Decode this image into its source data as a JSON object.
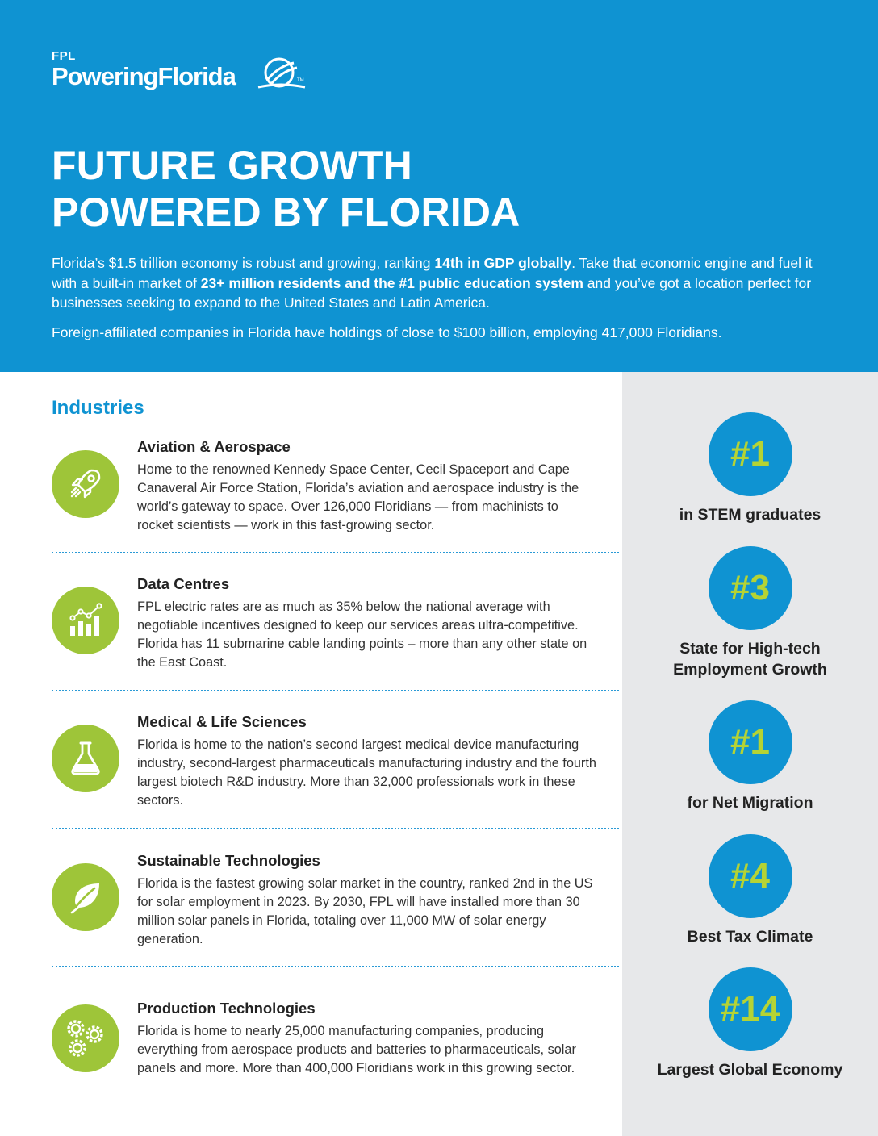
{
  "logo": {
    "brand_small": "FPL",
    "brand_main": "PoweringFlorida",
    "trademark": "TM"
  },
  "hero": {
    "title_line1": "FUTURE GROWTH",
    "title_line2": "POWERED BY FLORIDA",
    "intro": {
      "a": "Florida’s $1.5 trillion economy is robust and growing, ranking ",
      "b": "14th in GDP globally",
      "c": ". Take that economic engine and fuel it with a built-in market of ",
      "d": "23+ million residents and the #1 public education system",
      "e": " and you’ve got a location perfect for businesses seeking to expand to the United States and Latin America."
    },
    "intro2": "Foreign-affiliated companies in Florida have holdings of close to $100 billion, employing 417,000 Floridians."
  },
  "industries": {
    "heading": "Industries",
    "items": [
      {
        "title": "Aviation & Aerospace",
        "icon": "rocket-icon",
        "body": "Home to the renowned Kennedy Space Center, Cecil Spaceport and Cape Canaveral Air Force Station, Florida’s aviation and aerospace industry is the world’s gateway to space. Over 126,000 Floridians — from machinists to rocket scientists — work in this fast-growing sector."
      },
      {
        "title": "Data Centres",
        "icon": "bar-chart-icon",
        "body": "FPL electric rates are as much as 35% below the national average with negotiable incentives designed to keep our services areas ultra-competitive. Florida has 11 submarine cable landing points – more than any other state on the East Coast."
      },
      {
        "title": "Medical & Life Sciences",
        "icon": "flask-icon",
        "body": "Florida is home to the nation’s second largest medical device manufacturing industry, second-largest pharmaceuticals manufacturing industry and the fourth largest biotech R&D industry. More than 32,000 professionals work in these sectors."
      },
      {
        "title": "Sustainable Technologies",
        "icon": "leaf-icon",
        "body": "Florida is the fastest growing solar market in the country, ranked 2nd in the US for solar employment in 2023. By 2030, FPL will have installed more than 30 million solar panels in Florida, totaling over 11,000 MW of solar energy generation."
      },
      {
        "title": "Production Technologies",
        "icon": "gears-icon",
        "body": "Florida is home to nearly 25,000 manufacturing companies, producing everything from aerospace products and batteries to pharmaceuticals, solar panels and more. More than 400,000 Floridians work in this growing sector."
      }
    ]
  },
  "stats": [
    {
      "rank": "#1",
      "label_line1": "in STEM graduates",
      "label_line2": ""
    },
    {
      "rank": "#3",
      "label_line1": "State for High-tech",
      "label_line2": "Employment Growth"
    },
    {
      "rank": "#1",
      "label_line1": "for Net Migration",
      "label_line2": ""
    },
    {
      "rank": "#4",
      "label_line1": "Best Tax Climate",
      "label_line2": ""
    },
    {
      "rank": "#14",
      "label_line1": "Largest Global Economy",
      "label_line2": ""
    }
  ],
  "colors": {
    "blue": "#0f93d2",
    "green": "#9ec539",
    "rank_text": "#b5d334",
    "sidebar_bg": "#e7e8ea"
  }
}
